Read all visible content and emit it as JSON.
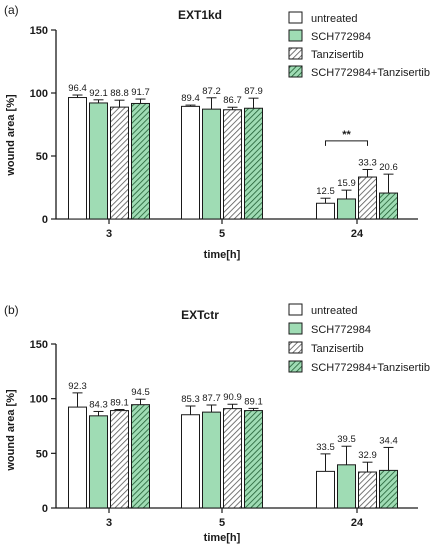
{
  "legend_labels": [
    "untreated",
    "SCH772984",
    "Tanzisertib",
    "SCH772984+Tanzisertib"
  ],
  "colors": {
    "untreated": "#ffffff",
    "sch": "#9fdcb4",
    "tanz_hatch": "#555555",
    "combo_fill": "#9fdcb4",
    "combo_hatch": "#1f5c32",
    "axis": "#1a1a1a"
  },
  "chart_data": [
    {
      "type": "bar",
      "panel_label": "(a)",
      "title": "EXT1kd",
      "xlabel": "time[h]",
      "ylabel": "wound area [%]",
      "categories": [
        "3",
        "5",
        "24"
      ],
      "ylim": [
        0,
        150
      ],
      "yticks": [
        0,
        50,
        100,
        150
      ],
      "legend_position": "top-right",
      "series": [
        {
          "name": "untreated",
          "values": [
            96.4,
            89.4,
            12.5
          ],
          "errors": [
            2.0,
            1.0,
            4.0
          ],
          "labels": [
            "96.4",
            "89.4",
            "12.5"
          ]
        },
        {
          "name": "SCH772984",
          "values": [
            92.1,
            87.2,
            15.9
          ],
          "errors": [
            2.5,
            9.0,
            7.0
          ],
          "labels": [
            "92.1",
            "87.2",
            "15.9"
          ]
        },
        {
          "name": "Tanzisertib",
          "values": [
            88.8,
            86.7,
            33.3
          ],
          "errors": [
            5.5,
            2.0,
            6.0
          ],
          "labels": [
            "88.8",
            "86.7",
            "33.3"
          ]
        },
        {
          "name": "SCH772984+Tanzisertib",
          "values": [
            91.7,
            87.9,
            20.6
          ],
          "errors": [
            3.5,
            8.0,
            15.0
          ],
          "labels": [
            "91.7",
            "87.9",
            "20.6"
          ]
        }
      ],
      "annotations": [
        {
          "text": "**",
          "group": "24",
          "from_series": "untreated",
          "to_series": "Tanzisertib",
          "y": 62
        }
      ]
    },
    {
      "type": "bar",
      "panel_label": "(b)",
      "title": "EXTctr",
      "xlabel": "time[h]",
      "ylabel": "wound area [%]",
      "categories": [
        "3",
        "5",
        "24"
      ],
      "ylim": [
        0,
        150
      ],
      "yticks": [
        0,
        50,
        100,
        150
      ],
      "legend_position": "top-right",
      "series": [
        {
          "name": "untreated",
          "values": [
            92.3,
            85.3,
            33.5
          ],
          "errors": [
            13.0,
            8.0,
            16.0
          ],
          "labels": [
            "92.3",
            "85.3",
            "33.5"
          ]
        },
        {
          "name": "SCH772984",
          "values": [
            84.3,
            87.7,
            39.5
          ],
          "errors": [
            4.0,
            6.5,
            17.0
          ],
          "labels": [
            "84.3",
            "87.7",
            "39.5"
          ]
        },
        {
          "name": "Tanzisertib",
          "values": [
            89.1,
            90.9,
            32.9
          ],
          "errors": [
            1.0,
            4.0,
            9.0
          ],
          "labels": [
            "89.1",
            "90.9",
            "32.9"
          ]
        },
        {
          "name": "SCH772984+Tanzisertib",
          "values": [
            94.5,
            89.1,
            34.4
          ],
          "errors": [
            5.0,
            2.0,
            21.0
          ],
          "labels": [
            "94.5",
            "89.1",
            "34.4"
          ]
        }
      ],
      "annotations": []
    }
  ]
}
